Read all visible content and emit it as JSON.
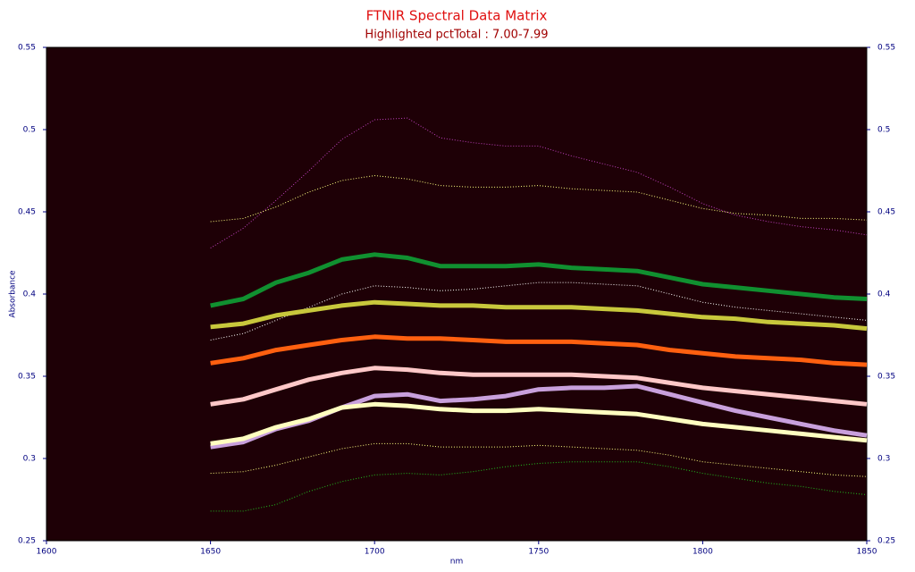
{
  "chart_data": {
    "type": "line",
    "title": "FTNIR Spectral Data Matrix",
    "subtitle": "Highlighted pctTotal : 7.00-7.99",
    "x_label": "nm",
    "y_label": "Absorbance",
    "xlim": [
      1600,
      1850
    ],
    "xticks": [
      1600,
      1650,
      1700,
      1750,
      1800,
      1850
    ],
    "ylim": [
      0.25,
      0.55
    ],
    "yticks": [
      0.25,
      0.3,
      0.35,
      0.4,
      0.45,
      0.5,
      0.55
    ],
    "y_axis_both_sides": true,
    "plot_background": "#1e0006",
    "x": [
      1650,
      1660,
      1670,
      1680,
      1690,
      1700,
      1710,
      1720,
      1730,
      1740,
      1750,
      1760,
      1770,
      1780,
      1790,
      1800,
      1810,
      1820,
      1830,
      1840,
      1850
    ],
    "series": [
      {
        "color": "#c040c0",
        "line_style": "dotted",
        "values": [
          0.428,
          0.44,
          0.457,
          0.475,
          0.494,
          0.506,
          0.507,
          0.495,
          0.492,
          0.49,
          0.49,
          0.484,
          0.479,
          0.474,
          0.465,
          0.455,
          0.448,
          0.444,
          0.441,
          0.439,
          0.436
        ]
      },
      {
        "color": "#ffff80",
        "line_style": "dotted",
        "values": [
          0.444,
          0.446,
          0.453,
          0.462,
          0.469,
          0.472,
          0.47,
          0.466,
          0.465,
          0.465,
          0.466,
          0.464,
          0.463,
          0.462,
          0.457,
          0.452,
          0.449,
          0.448,
          0.446,
          0.446,
          0.445
        ]
      },
      {
        "color": "#ffffff",
        "line_style": "dotted",
        "values": [
          0.372,
          0.376,
          0.384,
          0.392,
          0.4,
          0.405,
          0.404,
          0.402,
          0.403,
          0.405,
          0.407,
          0.407,
          0.406,
          0.405,
          0.4,
          0.395,
          0.392,
          0.39,
          0.388,
          0.386,
          0.384
        ]
      },
      {
        "color": "#ffff80",
        "line_style": "dotted",
        "values": [
          0.291,
          0.292,
          0.296,
          0.301,
          0.306,
          0.309,
          0.309,
          0.307,
          0.307,
          0.307,
          0.308,
          0.307,
          0.306,
          0.305,
          0.302,
          0.298,
          0.296,
          0.294,
          0.292,
          0.29,
          0.289
        ]
      },
      {
        "color": "#20c020",
        "line_style": "dotted",
        "values": [
          0.268,
          0.268,
          0.272,
          0.28,
          0.286,
          0.29,
          0.291,
          0.29,
          0.292,
          0.295,
          0.297,
          0.298,
          0.298,
          0.298,
          0.295,
          0.291,
          0.288,
          0.285,
          0.283,
          0.28,
          0.278
        ]
      },
      {
        "color": "#109030",
        "line_style": "solid",
        "values": [
          0.393,
          0.397,
          0.407,
          0.413,
          0.421,
          0.424,
          0.422,
          0.417,
          0.417,
          0.417,
          0.418,
          0.416,
          0.415,
          0.414,
          0.41,
          0.406,
          0.404,
          0.402,
          0.4,
          0.398,
          0.397
        ]
      },
      {
        "color": "#c8c83c",
        "line_style": "solid",
        "values": [
          0.38,
          0.382,
          0.387,
          0.39,
          0.393,
          0.395,
          0.394,
          0.393,
          0.393,
          0.392,
          0.392,
          0.392,
          0.391,
          0.39,
          0.388,
          0.386,
          0.385,
          0.383,
          0.382,
          0.381,
          0.379
        ]
      },
      {
        "color": "#ff6010",
        "line_style": "solid",
        "values": [
          0.358,
          0.361,
          0.366,
          0.369,
          0.372,
          0.374,
          0.373,
          0.373,
          0.372,
          0.371,
          0.371,
          0.371,
          0.37,
          0.369,
          0.366,
          0.364,
          0.362,
          0.361,
          0.36,
          0.358,
          0.357
        ]
      },
      {
        "color": "#ffc8c8",
        "line_style": "solid",
        "values": [
          0.333,
          0.336,
          0.342,
          0.348,
          0.352,
          0.355,
          0.354,
          0.352,
          0.351,
          0.351,
          0.351,
          0.351,
          0.35,
          0.349,
          0.346,
          0.343,
          0.341,
          0.339,
          0.337,
          0.335,
          0.333
        ]
      },
      {
        "color": "#c8a0dc",
        "line_style": "solid",
        "values": [
          0.307,
          0.31,
          0.318,
          0.323,
          0.331,
          0.338,
          0.339,
          0.335,
          0.336,
          0.338,
          0.342,
          0.343,
          0.343,
          0.344,
          0.339,
          0.334,
          0.329,
          0.325,
          0.321,
          0.317,
          0.314
        ]
      },
      {
        "color": "#ffffc0",
        "line_style": "solid",
        "values": [
          0.309,
          0.312,
          0.319,
          0.324,
          0.331,
          0.333,
          0.332,
          0.33,
          0.329,
          0.329,
          0.33,
          0.329,
          0.328,
          0.327,
          0.324,
          0.321,
          0.319,
          0.317,
          0.315,
          0.313,
          0.311
        ]
      }
    ]
  }
}
